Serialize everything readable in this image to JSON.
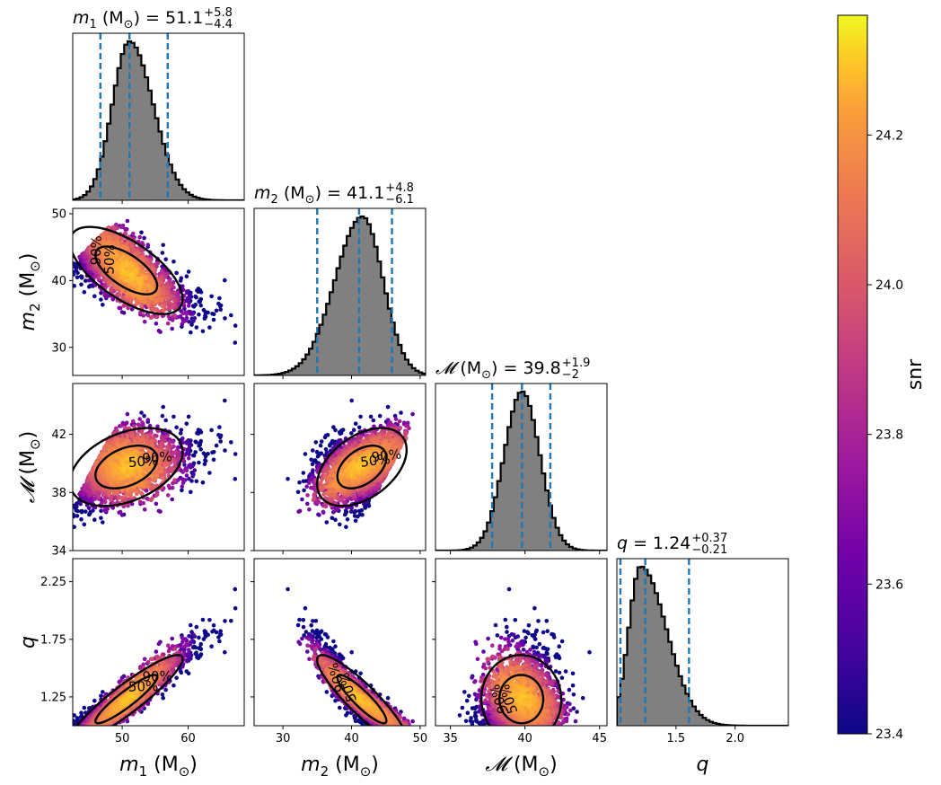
{
  "chart_data": {
    "type": "corner",
    "parameters": [
      {
        "symbol": "m_1",
        "label_var": "m",
        "label_sub": "1",
        "unit": "(M",
        "unit_sub": "⊙",
        "unit_close": ")",
        "median": "51.1",
        "plus": "+5.8",
        "minus": "−4.4",
        "range": [
          42.5,
          68.5
        ],
        "ticks": [
          50,
          60
        ],
        "tick_labels": [
          "50",
          "60"
        ],
        "quantiles": [
          46.7,
          51.1,
          56.9
        ],
        "hist_center": 51.1,
        "hist_left_sigma": 2.6,
        "hist_right_sigma": 3.6
      },
      {
        "symbol": "m_2",
        "label_var": "m",
        "label_sub": "2",
        "unit": "(M",
        "unit_sub": "⊙",
        "unit_close": ")",
        "median": "41.1",
        "plus": "+4.8",
        "minus": "−6.1",
        "range": [
          25.8,
          50.8
        ],
        "ticks": [
          30,
          40,
          50
        ],
        "tick_labels": [
          "30",
          "40",
          "50"
        ],
        "quantiles": [
          35.0,
          41.1,
          45.9
        ],
        "hist_center": 41.6,
        "hist_left_sigma": 4.0,
        "hist_right_sigma": 3.0
      },
      {
        "symbol": "M",
        "label_var": "𝓜",
        "label_sub": "",
        "unit": "(M",
        "unit_sub": "⊙",
        "unit_close": ")",
        "median": "39.8",
        "plus": "+1.9",
        "minus": "−2",
        "range": [
          34.0,
          45.5
        ],
        "ticks": [
          35,
          40,
          45
        ],
        "tick_labels_x": [
          "35",
          "40",
          "45"
        ],
        "ticks_y": [
          34,
          38,
          42
        ],
        "tick_labels_y": [
          "34",
          "38",
          "42"
        ],
        "quantiles": [
          37.8,
          39.8,
          41.7
        ],
        "hist_center": 39.8,
        "hist_left_sigma": 1.2,
        "hist_right_sigma": 1.2
      },
      {
        "symbol": "q",
        "label_var": "q",
        "label_sub": "",
        "unit": "",
        "unit_sub": "",
        "unit_close": "",
        "median": "1.24",
        "plus": "+0.37",
        "minus": "−0.21",
        "range": [
          1.0,
          2.45
        ],
        "ticks_x": [
          1.5,
          2.0
        ],
        "tick_labels_x": [
          "1.5",
          "2.0"
        ],
        "ticks_y": [
          1.25,
          1.75,
          2.25
        ],
        "tick_labels_y": [
          "1.25",
          "1.75",
          "2.25"
        ],
        "quantiles": [
          1.03,
          1.24,
          1.61
        ],
        "hist_center": 1.2,
        "hist_left_sigma": 0.1,
        "hist_right_sigma": 0.22
      }
    ],
    "contour_labels": [
      "50%",
      "90%"
    ],
    "colorbar": {
      "label": "snr",
      "min": 23.4,
      "max": 24.36,
      "ticks": [
        23.4,
        23.6,
        23.8,
        24.0,
        24.2
      ],
      "tick_labels": [
        "23.4",
        "23.6",
        "23.8",
        "24.0",
        "24.2"
      ],
      "colormap": "plasma"
    },
    "hist_fill_color": "#808080",
    "quantile_line_color": "#1f77b4",
    "contour_color": "#000000"
  }
}
